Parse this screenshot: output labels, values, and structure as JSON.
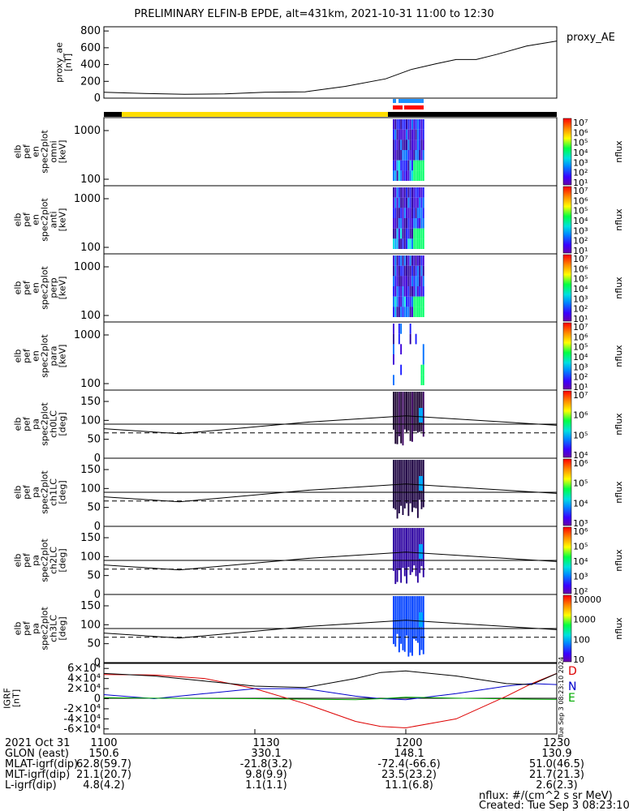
{
  "title": "PRELIMINARY ELFIN-B EPDE, alt=431km, 2021-10-31 11:00 to 12:30",
  "chart_data": [
    {
      "id": "proxy_ae",
      "type": "line",
      "ylabel": [
        "proxy_ae",
        "[nT]"
      ],
      "legend": "proxy_AE",
      "ylim": [
        0,
        850
      ],
      "yticks": [
        "0",
        "200",
        "400",
        "600",
        "800"
      ],
      "x_minutes": [
        0,
        8,
        16,
        24,
        32,
        40,
        48,
        56,
        61,
        66,
        70,
        74,
        78,
        84,
        90
      ],
      "values": [
        70,
        55,
        45,
        50,
        70,
        75,
        140,
        230,
        340,
        410,
        460,
        460,
        520,
        620,
        680
      ]
    },
    {
      "id": "omni",
      "type": "heatmap",
      "ylabel": [
        "elb",
        "pef",
        "en",
        "spec2plot",
        "omni",
        "[keV]"
      ],
      "yticks": [
        "100",
        "1000"
      ],
      "cbar": {
        "label": "nflux",
        "ticks": [
          "10¹",
          "10²",
          "10³",
          "10⁴",
          "10⁵",
          "10⁶",
          "10⁷"
        ]
      }
    },
    {
      "id": "anti",
      "type": "heatmap",
      "ylabel": [
        "elb",
        "pef",
        "en",
        "spec2plot",
        "anti",
        "[keV]"
      ],
      "yticks": [
        "100",
        "1000"
      ],
      "cbar": {
        "label": "nflux",
        "ticks": [
          "10¹",
          "10²",
          "10³",
          "10⁴",
          "10⁵",
          "10⁶",
          "10⁷"
        ]
      }
    },
    {
      "id": "perp",
      "type": "heatmap",
      "ylabel": [
        "elb",
        "pef",
        "en",
        "spec2plot",
        "perp",
        "[keV]"
      ],
      "yticks": [
        "100",
        "1000"
      ],
      "cbar": {
        "label": "nflux",
        "ticks": [
          "10¹",
          "10²",
          "10³",
          "10⁴",
          "10⁵",
          "10⁶",
          "10⁷"
        ]
      }
    },
    {
      "id": "para",
      "type": "heatmap",
      "ylabel": [
        "elb",
        "pef",
        "en",
        "spec2plot",
        "para",
        "[keV]"
      ],
      "yticks": [
        "100",
        "1000"
      ],
      "cbar": {
        "label": "nflux",
        "ticks": [
          "10¹",
          "10²",
          "10³",
          "10⁴",
          "10⁵",
          "10⁶",
          "10⁷"
        ]
      }
    },
    {
      "id": "ch0LC",
      "type": "heatmap",
      "ylabel": [
        "elb",
        "pef",
        "pa",
        "spec2plot",
        "ch0LC",
        "[deg]"
      ],
      "yticks": [
        "0",
        "50",
        "100",
        "150"
      ],
      "cbar": {
        "label": "nflux",
        "ticks": [
          "10⁴",
          "10⁵",
          "10⁶",
          "10⁷"
        ]
      }
    },
    {
      "id": "ch1LC",
      "type": "heatmap",
      "ylabel": [
        "elb",
        "pef",
        "pa",
        "spec2plot",
        "ch1LC",
        "[deg]"
      ],
      "yticks": [
        "0",
        "50",
        "100",
        "150"
      ],
      "cbar": {
        "label": "nflux",
        "ticks": [
          "10³",
          "10⁴",
          "10⁵",
          "10⁶"
        ]
      }
    },
    {
      "id": "ch2LC",
      "type": "heatmap",
      "ylabel": [
        "elb",
        "pef",
        "pa",
        "spec2plot",
        "ch2LC",
        "[deg]"
      ],
      "yticks": [
        "0",
        "50",
        "100",
        "150"
      ],
      "cbar": {
        "label": "nflux",
        "ticks": [
          "10²",
          "10³",
          "10⁴",
          "10⁵",
          "10⁶"
        ]
      }
    },
    {
      "id": "ch3LC",
      "type": "heatmap",
      "ylabel": [
        "elb",
        "pef",
        "pa",
        "spec2plot",
        "ch3LC",
        "[deg]"
      ],
      "yticks": [
        "0",
        "50",
        "100",
        "150"
      ],
      "cbar": {
        "label": "nflux",
        "ticks": [
          "10",
          "100",
          "1000",
          "10000"
        ]
      }
    },
    {
      "id": "igrf",
      "type": "line",
      "ylabel": [
        "IGRF",
        "[nT]"
      ],
      "ylim": [
        -70000,
        70000
      ],
      "yticks": [
        "-6×10⁴",
        "-4×10⁴",
        "-2×10⁴",
        "0",
        "2×10⁴",
        "4×10⁴",
        "6×10⁴"
      ],
      "legend": [
        "D",
        "N",
        "E"
      ],
      "x_minutes": [
        0,
        10,
        20,
        30,
        40,
        50,
        55,
        60,
        70,
        80,
        85,
        90
      ],
      "series": [
        {
          "name": "D",
          "color": "#dd0000",
          "values": [
            48000,
            47000,
            40000,
            20000,
            -10000,
            -45000,
            -55000,
            -58000,
            -40000,
            5000,
            30000,
            50000
          ]
        },
        {
          "name": "N",
          "color": "#0000cc",
          "values": [
            8000,
            0,
            10000,
            20000,
            20000,
            5000,
            0,
            -2000,
            10000,
            25000,
            30000,
            28000
          ]
        },
        {
          "name": "E",
          "color": "#00aa00",
          "values": [
            2000,
            1000,
            500,
            0,
            -1000,
            -2000,
            0,
            3000,
            1000,
            -500,
            -1000,
            -1500
          ]
        },
        {
          "name": "total",
          "color": "#000000",
          "values": [
            50000,
            45000,
            35000,
            25000,
            22000,
            40000,
            52000,
            55000,
            45000,
            30000,
            28000,
            50000
          ]
        }
      ]
    }
  ],
  "x_axis": {
    "tick_labels": [
      "1100",
      "1130",
      "1200",
      "1230"
    ],
    "tick_minutes": [
      0,
      30,
      60,
      90
    ]
  },
  "annotation_table": {
    "rows": [
      {
        "label": "2021 Oct 31",
        "values": [
          "1100",
          "1130",
          "1200",
          "1230"
        ]
      },
      {
        "label": "GLON (east)",
        "values": [
          "150.6",
          "330.1",
          "148.1",
          "130.9"
        ]
      },
      {
        "label": "MLAT-igrf(dip)",
        "values": [
          "62.8(59.7)",
          "-21.8(3.2)",
          "-72.4(-66.6)",
          "51.0(46.5)"
        ]
      },
      {
        "label": "MLT-igrf(dip)",
        "values": [
          "21.1(20.7)",
          "9.8(9.9)",
          "23.5(23.2)",
          "21.7(21.3)"
        ]
      },
      {
        "label": "L-igrf(dip)",
        "values": [
          "4.8(4.2)",
          "1.1(1.1)",
          "11.1(6.8)",
          "2.6(2.3)"
        ]
      }
    ]
  },
  "footer": {
    "units": "nflux: #/(cm^2 s sr MeV)",
    "created": "Created: Tue Sep  3 08:23:10 2024",
    "side_stamp": "Tue Sep  3 08:23:10 2024"
  },
  "status_bars": {
    "colors": [
      "#000000",
      "#ffdd00",
      "#1e90ff",
      "#ff0000"
    ]
  }
}
